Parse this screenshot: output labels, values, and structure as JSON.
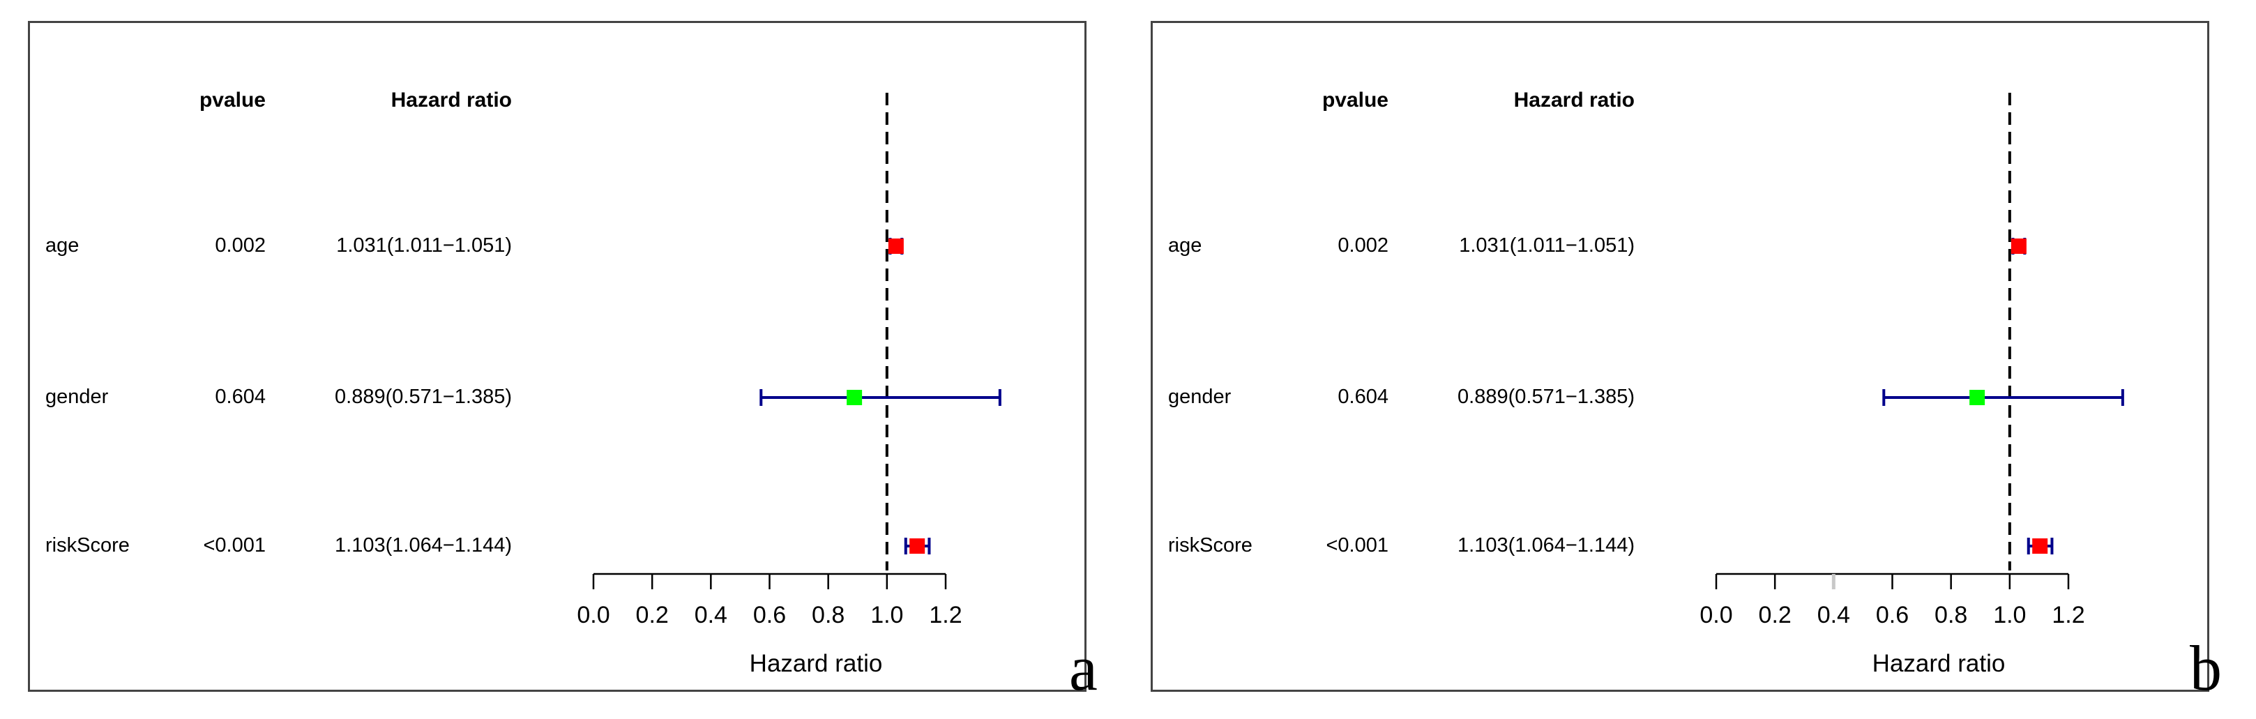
{
  "colors": {
    "ci_line": "#00008b",
    "marker_risk": "#ff0000",
    "marker_protective": "#00ff00",
    "reference_line": "#000000",
    "axis": "#000000",
    "highlight_tick": "#c8c8c8"
  },
  "chart_data": [
    {
      "panel": "a",
      "type": "forest",
      "columns": {
        "pvalue": "pvalue",
        "hazard_ratio": "Hazard ratio"
      },
      "rows": [
        {
          "label": "age",
          "pvalue": "0.002",
          "hr_text": "1.031(1.011−1.051)",
          "hr": 1.031,
          "lower": 1.011,
          "upper": 1.051,
          "color": "red"
        },
        {
          "label": "gender",
          "pvalue": "0.604",
          "hr_text": "0.889(0.571−1.385)",
          "hr": 0.889,
          "lower": 0.571,
          "upper": 1.385,
          "color": "green"
        },
        {
          "label": "riskScore",
          "pvalue": "<0.001",
          "hr_text": "1.103(1.064−1.144)",
          "hr": 1.103,
          "lower": 1.064,
          "upper": 1.144,
          "color": "red"
        }
      ],
      "reference_line": 1.0,
      "x_ticks": [
        "0.0",
        "0.2",
        "0.4",
        "0.6",
        "0.8",
        "1.0",
        "1.2"
      ],
      "x_tick_values": [
        0.0,
        0.2,
        0.4,
        0.6,
        0.8,
        1.0,
        1.2
      ],
      "highlighted_tick": null,
      "xlim": [
        0.0,
        1.2
      ],
      "xlabel": "Hazard ratio",
      "panel_letter": "a"
    },
    {
      "panel": "b",
      "type": "forest",
      "columns": {
        "pvalue": "pvalue",
        "hazard_ratio": "Hazard ratio"
      },
      "rows": [
        {
          "label": "age",
          "pvalue": "0.002",
          "hr_text": "1.031(1.011−1.051)",
          "hr": 1.031,
          "lower": 1.011,
          "upper": 1.051,
          "color": "red"
        },
        {
          "label": "gender",
          "pvalue": "0.604",
          "hr_text": "0.889(0.571−1.385)",
          "hr": 0.889,
          "lower": 0.571,
          "upper": 1.385,
          "color": "green"
        },
        {
          "label": "riskScore",
          "pvalue": "<0.001",
          "hr_text": "1.103(1.064−1.144)",
          "hr": 1.103,
          "lower": 1.064,
          "upper": 1.144,
          "color": "red"
        }
      ],
      "reference_line": 1.0,
      "x_ticks": [
        "0.0",
        "0.2",
        "0.4",
        "0.6",
        "0.8",
        "1.0",
        "1.2"
      ],
      "x_tick_values": [
        0.0,
        0.2,
        0.4,
        0.6,
        0.8,
        1.0,
        1.2
      ],
      "highlighted_tick": 0.4,
      "xlim": [
        0.0,
        1.2
      ],
      "xlabel": "Hazard ratio",
      "panel_letter": "b"
    }
  ]
}
